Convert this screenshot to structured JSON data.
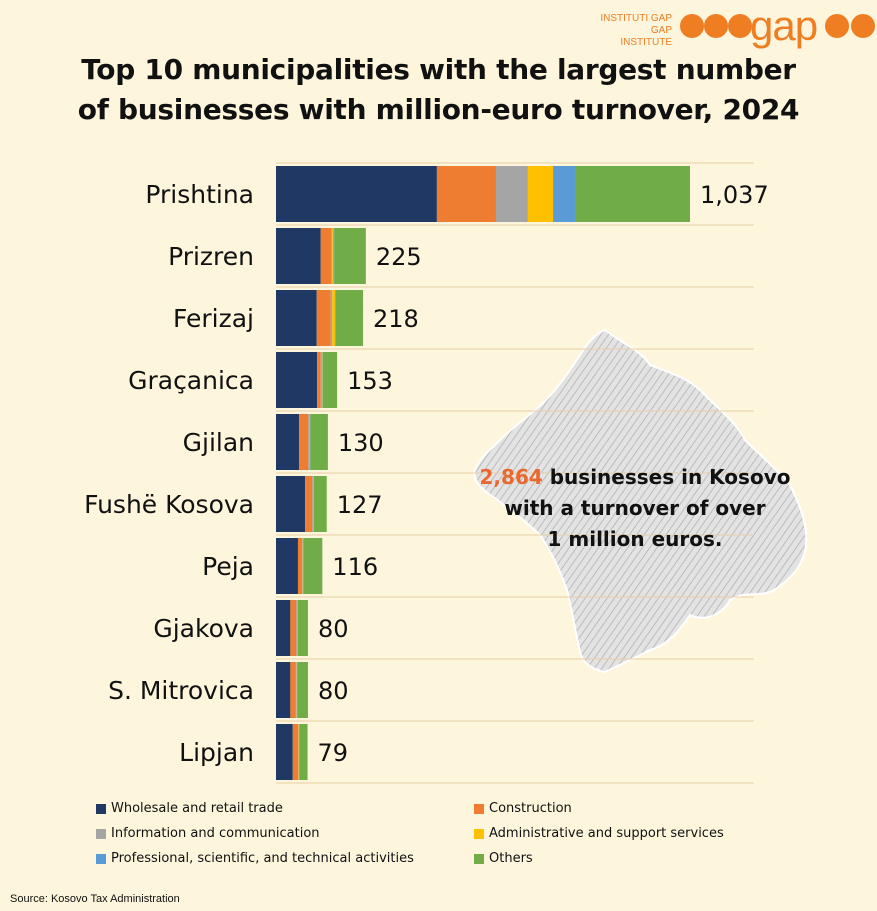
{
  "brand": {
    "line1": "INSTITUTI GAP",
    "line2": "GAP INSTITUTE",
    "word": "gap",
    "color": "#ef7d22"
  },
  "title_line1": "Top 10 municipalities with the largest number",
  "title_line2": "of businesses with million-euro turnover, 2024",
  "callout": {
    "number": "2,864",
    "line1_rest": " businesses in Kosovo",
    "line2": "with a turnover of over",
    "line3": "1 million euros."
  },
  "source": "Source: Kosovo Tax Administration",
  "chart_data": {
    "type": "bar",
    "orientation": "horizontal",
    "stacked": true,
    "categories": [
      "Prishtina",
      "Prizren",
      "Ferizaj",
      "Graçanica",
      "Gjilan",
      "Fushë Kosova",
      "Peja",
      "Gjakova",
      "S. Mitrovica",
      "Lipjan"
    ],
    "totals": [
      1037,
      225,
      218,
      153,
      130,
      127,
      116,
      80,
      80,
      79
    ],
    "total_labels": [
      "1,037",
      "225",
      "218",
      "153",
      "130",
      "127",
      "116",
      "80",
      "80",
      "79"
    ],
    "series": [
      {
        "name": "Wholesale and retail trade",
        "color": "#1f3864",
        "values": [
          403,
          112,
          102,
          103,
          58,
          73,
          55,
          36,
          36,
          42
        ]
      },
      {
        "name": "Construction",
        "color": "#ef7d31",
        "values": [
          148,
          26,
          35,
          9,
          23,
          18,
          10,
          15,
          13,
          14
        ]
      },
      {
        "name": "Information and communication",
        "color": "#a5a5a5",
        "values": [
          80,
          3,
          4,
          3,
          3,
          2,
          2,
          2,
          2,
          1
        ]
      },
      {
        "name": "Administrative and support services",
        "color": "#ffc000",
        "values": [
          63,
          3,
          7,
          1,
          1,
          1,
          1,
          1,
          1,
          1
        ]
      },
      {
        "name": "Professional, scientific, and technical activities",
        "color": "#5b9bd5",
        "values": [
          55,
          2,
          2,
          1,
          1,
          1,
          1,
          1,
          1,
          1
        ]
      },
      {
        "name": "Others",
        "color": "#70ad47",
        "values": [
          288,
          79,
          68,
          36,
          44,
          32,
          47,
          25,
          27,
          20
        ]
      }
    ],
    "xlim": [
      0,
      1037
    ],
    "legend_position": "bottom",
    "grid": true
  }
}
